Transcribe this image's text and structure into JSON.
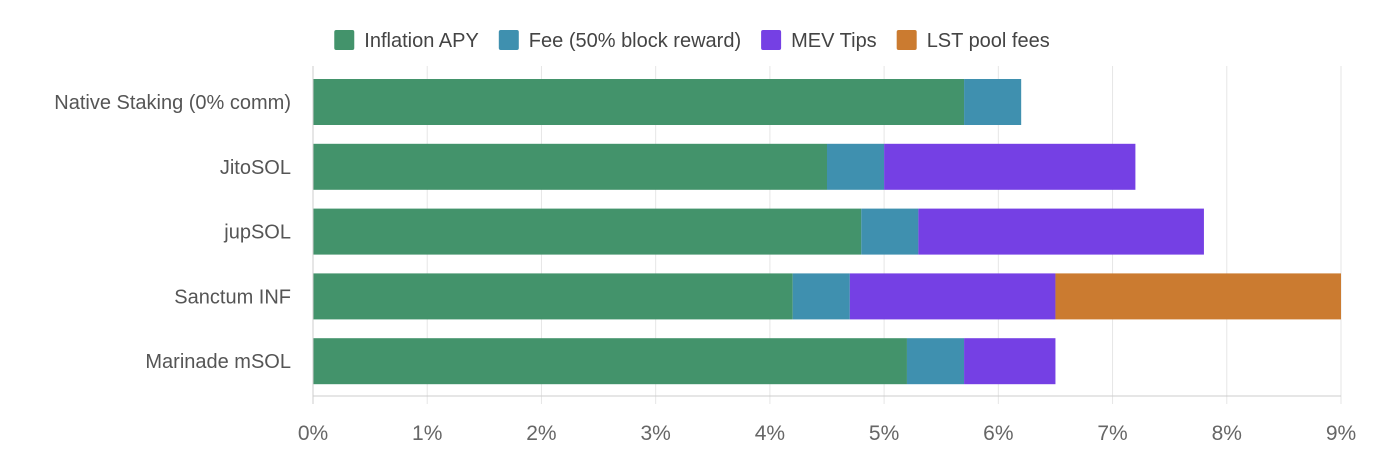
{
  "chart_data": {
    "type": "bar",
    "orientation": "horizontal",
    "stacked": true,
    "categories": [
      "Native Staking (0% comm)",
      "JitoSOL",
      "jupSOL",
      "Sanctum INF",
      "Marinade mSOL"
    ],
    "series": [
      {
        "name": "Inflation APY",
        "color": "#43936b",
        "values": [
          5.7,
          4.5,
          4.8,
          4.2,
          5.2
        ]
      },
      {
        "name": "Fee (50% block reward)",
        "color": "#3f90af",
        "values": [
          0.5,
          0.5,
          0.5,
          0.5,
          0.5
        ]
      },
      {
        "name": "MEV Tips",
        "color": "#7540e4",
        "values": [
          0,
          2.2,
          2.5,
          1.8,
          0.8
        ]
      },
      {
        "name": "LST pool fees",
        "color": "#cb7b30",
        "values": [
          0,
          0,
          0,
          2.5,
          0
        ]
      }
    ],
    "xlim": [
      0,
      9
    ],
    "xticks": [
      "0%",
      "1%",
      "2%",
      "3%",
      "4%",
      "5%",
      "6%",
      "7%",
      "8%",
      "9%"
    ],
    "grid": true,
    "legend_position": "top"
  }
}
